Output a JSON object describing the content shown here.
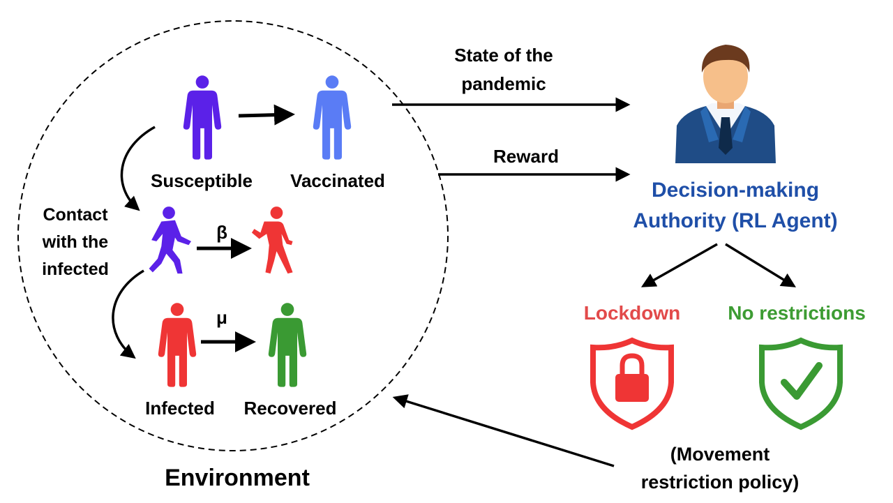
{
  "environment": {
    "title": "Environment",
    "susceptible_label": "Susceptible",
    "vaccinated_label": "Vaccinated",
    "contact_label_lines": [
      "Contact",
      "with the",
      "infected"
    ],
    "infected_label": "Infected",
    "recovered_label": "Recovered",
    "beta_symbol": "β",
    "mu_symbol": "μ"
  },
  "flows": {
    "state_label_lines": [
      "State of the",
      "pandemic"
    ],
    "reward_label": "Reward",
    "policy_label_lines": [
      "(Movement",
      "restriction policy)"
    ]
  },
  "agent": {
    "title_lines": [
      "Decision-making",
      "Authority (RL Agent)"
    ]
  },
  "actions": {
    "lockdown_label": "Lockdown",
    "no_restrictions_label": "No restrictions"
  },
  "colors": {
    "susceptible": "#5b21e8",
    "vaccinated": "#5a7cf5",
    "infected": "#ef3535",
    "recovered": "#3a9a33",
    "agent_text": "#1f4fa8",
    "lockdown": "#e24a4a",
    "no_restrictions": "#3d9c33",
    "suit": "#1f4c86",
    "skin": "#f6bf8a",
    "hair": "#6b3a1e"
  }
}
